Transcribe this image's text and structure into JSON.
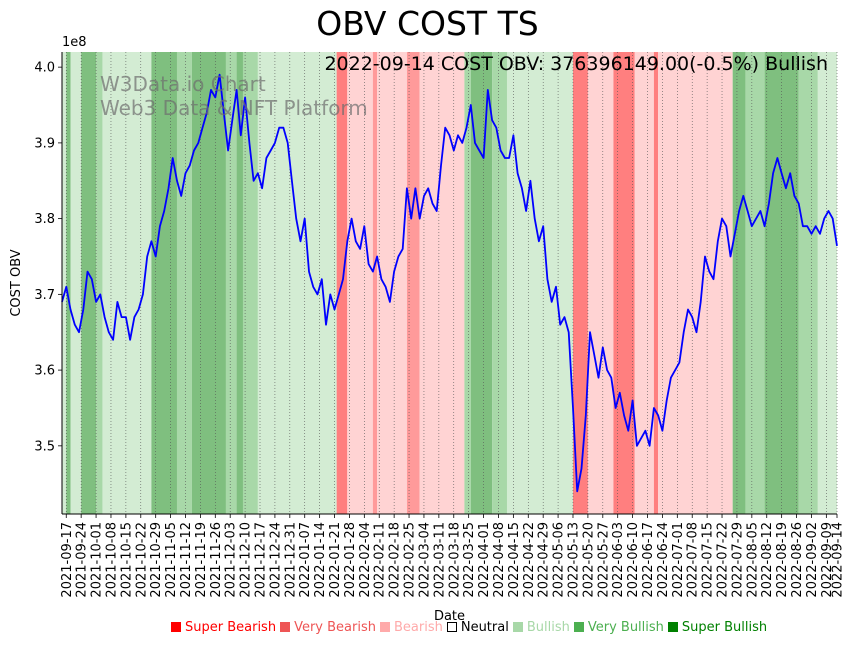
{
  "chart_data": {
    "type": "line",
    "title": "OBV COST TS",
    "annotation": "2022-09-14 COST OBV: 376396149.00(-0.5%) Bullish",
    "watermark_lines": [
      "W3Data.io Chart",
      "Web3 Data & NFT Platform"
    ],
    "xlabel": "Date",
    "ylabel": "COST OBV",
    "y_offset_label": "1e8",
    "ylim": [
      3.41,
      4.02
    ],
    "y_ticks": [
      "3.5",
      "3.6",
      "3.7",
      "3.8",
      "3.9",
      "4.0"
    ],
    "y_tick_values": [
      3.5,
      3.6,
      3.7,
      3.8,
      3.9,
      4.0
    ],
    "x_range": [
      "2021-09-15",
      "2022-09-14"
    ],
    "x_ticks": [
      "2021-09-17",
      "2021-09-24",
      "2021-10-01",
      "2021-10-08",
      "2021-10-15",
      "2021-10-22",
      "2021-10-29",
      "2021-11-05",
      "2021-11-12",
      "2021-11-19",
      "2021-11-26",
      "2021-12-03",
      "2021-12-10",
      "2021-12-17",
      "2021-12-24",
      "2021-12-31",
      "2022-01-07",
      "2022-01-14",
      "2022-01-21",
      "2022-01-28",
      "2022-02-04",
      "2022-02-11",
      "2022-02-18",
      "2022-02-25",
      "2022-03-04",
      "2022-03-11",
      "2022-03-18",
      "2022-03-25",
      "2022-04-01",
      "2022-04-08",
      "2022-04-15",
      "2022-04-22",
      "2022-04-29",
      "2022-05-06",
      "2022-05-13",
      "2022-05-20",
      "2022-05-27",
      "2022-06-03",
      "2022-06-10",
      "2022-06-17",
      "2022-06-24",
      "2022-07-01",
      "2022-07-08",
      "2022-07-15",
      "2022-07-22",
      "2022-07-29",
      "2022-08-05",
      "2022-08-12",
      "2022-08-19",
      "2022-08-26",
      "2022-09-02",
      "2022-09-09",
      "2022-09-14"
    ],
    "grid": "vertical dotted",
    "series": [
      {
        "color": "#0000ff",
        "points": [
          [
            "2021-09-15",
            3.69
          ],
          [
            "2021-09-17",
            3.71
          ],
          [
            "2021-09-19",
            3.68
          ],
          [
            "2021-09-21",
            3.66
          ],
          [
            "2021-09-23",
            3.65
          ],
          [
            "2021-09-25",
            3.68
          ],
          [
            "2021-09-27",
            3.73
          ],
          [
            "2021-09-29",
            3.72
          ],
          [
            "2021-10-01",
            3.69
          ],
          [
            "2021-10-03",
            3.7
          ],
          [
            "2021-10-05",
            3.67
          ],
          [
            "2021-10-07",
            3.65
          ],
          [
            "2021-10-09",
            3.64
          ],
          [
            "2021-10-11",
            3.69
          ],
          [
            "2021-10-13",
            3.67
          ],
          [
            "2021-10-15",
            3.67
          ],
          [
            "2021-10-17",
            3.64
          ],
          [
            "2021-10-19",
            3.67
          ],
          [
            "2021-10-21",
            3.68
          ],
          [
            "2021-10-23",
            3.7
          ],
          [
            "2021-10-25",
            3.75
          ],
          [
            "2021-10-27",
            3.77
          ],
          [
            "2021-10-29",
            3.75
          ],
          [
            "2021-10-31",
            3.79
          ],
          [
            "2021-11-02",
            3.81
          ],
          [
            "2021-11-04",
            3.84
          ],
          [
            "2021-11-06",
            3.88
          ],
          [
            "2021-11-08",
            3.85
          ],
          [
            "2021-11-10",
            3.83
          ],
          [
            "2021-11-12",
            3.86
          ],
          [
            "2021-11-14",
            3.87
          ],
          [
            "2021-11-16",
            3.89
          ],
          [
            "2021-11-18",
            3.9
          ],
          [
            "2021-11-20",
            3.92
          ],
          [
            "2021-11-22",
            3.94
          ],
          [
            "2021-11-24",
            3.97
          ],
          [
            "2021-11-26",
            3.96
          ],
          [
            "2021-11-28",
            3.99
          ],
          [
            "2021-11-30",
            3.94
          ],
          [
            "2021-12-02",
            3.89
          ],
          [
            "2021-12-04",
            3.93
          ],
          [
            "2021-12-06",
            3.97
          ],
          [
            "2021-12-08",
            3.91
          ],
          [
            "2021-12-10",
            3.96
          ],
          [
            "2021-12-12",
            3.9
          ],
          [
            "2021-12-14",
            3.85
          ],
          [
            "2021-12-16",
            3.86
          ],
          [
            "2021-12-18",
            3.84
          ],
          [
            "2021-12-20",
            3.88
          ],
          [
            "2021-12-22",
            3.89
          ],
          [
            "2021-12-24",
            3.9
          ],
          [
            "2021-12-26",
            3.92
          ],
          [
            "2021-12-28",
            3.92
          ],
          [
            "2021-12-30",
            3.9
          ],
          [
            "2022-01-01",
            3.85
          ],
          [
            "2022-01-03",
            3.8
          ],
          [
            "2022-01-05",
            3.77
          ],
          [
            "2022-01-07",
            3.8
          ],
          [
            "2022-01-09",
            3.73
          ],
          [
            "2022-01-11",
            3.71
          ],
          [
            "2022-01-13",
            3.7
          ],
          [
            "2022-01-15",
            3.72
          ],
          [
            "2022-01-17",
            3.66
          ],
          [
            "2022-01-19",
            3.7
          ],
          [
            "2022-01-21",
            3.68
          ],
          [
            "2022-01-23",
            3.7
          ],
          [
            "2022-01-25",
            3.72
          ],
          [
            "2022-01-27",
            3.77
          ],
          [
            "2022-01-29",
            3.8
          ],
          [
            "2022-01-31",
            3.77
          ],
          [
            "2022-02-02",
            3.76
          ],
          [
            "2022-02-04",
            3.79
          ],
          [
            "2022-02-06",
            3.74
          ],
          [
            "2022-02-08",
            3.73
          ],
          [
            "2022-02-10",
            3.75
          ],
          [
            "2022-02-12",
            3.72
          ],
          [
            "2022-02-14",
            3.71
          ],
          [
            "2022-02-16",
            3.69
          ],
          [
            "2022-02-18",
            3.73
          ],
          [
            "2022-02-20",
            3.75
          ],
          [
            "2022-02-22",
            3.76
          ],
          [
            "2022-02-24",
            3.84
          ],
          [
            "2022-02-26",
            3.8
          ],
          [
            "2022-02-28",
            3.84
          ],
          [
            "2022-03-02",
            3.8
          ],
          [
            "2022-03-04",
            3.83
          ],
          [
            "2022-03-06",
            3.84
          ],
          [
            "2022-03-08",
            3.82
          ],
          [
            "2022-03-10",
            3.81
          ],
          [
            "2022-03-12",
            3.87
          ],
          [
            "2022-03-14",
            3.92
          ],
          [
            "2022-03-16",
            3.91
          ],
          [
            "2022-03-18",
            3.89
          ],
          [
            "2022-03-20",
            3.91
          ],
          [
            "2022-03-22",
            3.9
          ],
          [
            "2022-03-24",
            3.92
          ],
          [
            "2022-03-26",
            3.95
          ],
          [
            "2022-03-28",
            3.9
          ],
          [
            "2022-03-30",
            3.89
          ],
          [
            "2022-04-01",
            3.88
          ],
          [
            "2022-04-03",
            3.97
          ],
          [
            "2022-04-05",
            3.93
          ],
          [
            "2022-04-07",
            3.92
          ],
          [
            "2022-04-09",
            3.89
          ],
          [
            "2022-04-11",
            3.88
          ],
          [
            "2022-04-13",
            3.88
          ],
          [
            "2022-04-15",
            3.91
          ],
          [
            "2022-04-17",
            3.86
          ],
          [
            "2022-04-19",
            3.84
          ],
          [
            "2022-04-21",
            3.81
          ],
          [
            "2022-04-23",
            3.85
          ],
          [
            "2022-04-25",
            3.8
          ],
          [
            "2022-04-27",
            3.77
          ],
          [
            "2022-04-29",
            3.79
          ],
          [
            "2022-05-01",
            3.72
          ],
          [
            "2022-05-03",
            3.69
          ],
          [
            "2022-05-05",
            3.71
          ],
          [
            "2022-05-07",
            3.66
          ],
          [
            "2022-05-09",
            3.67
          ],
          [
            "2022-05-11",
            3.65
          ],
          [
            "2022-05-13",
            3.55
          ],
          [
            "2022-05-15",
            3.44
          ],
          [
            "2022-05-17",
            3.47
          ],
          [
            "2022-05-19",
            3.54
          ],
          [
            "2022-05-21",
            3.65
          ],
          [
            "2022-05-23",
            3.62
          ],
          [
            "2022-05-25",
            3.59
          ],
          [
            "2022-05-27",
            3.63
          ],
          [
            "2022-05-29",
            3.6
          ],
          [
            "2022-05-31",
            3.59
          ],
          [
            "2022-06-02",
            3.55
          ],
          [
            "2022-06-04",
            3.57
          ],
          [
            "2022-06-06",
            3.54
          ],
          [
            "2022-06-08",
            3.52
          ],
          [
            "2022-06-10",
            3.56
          ],
          [
            "2022-06-12",
            3.5
          ],
          [
            "2022-06-14",
            3.51
          ],
          [
            "2022-06-16",
            3.52
          ],
          [
            "2022-06-18",
            3.5
          ],
          [
            "2022-06-20",
            3.55
          ],
          [
            "2022-06-22",
            3.54
          ],
          [
            "2022-06-24",
            3.52
          ],
          [
            "2022-06-26",
            3.56
          ],
          [
            "2022-06-28",
            3.59
          ],
          [
            "2022-06-30",
            3.6
          ],
          [
            "2022-07-02",
            3.61
          ],
          [
            "2022-07-04",
            3.65
          ],
          [
            "2022-07-06",
            3.68
          ],
          [
            "2022-07-08",
            3.67
          ],
          [
            "2022-07-10",
            3.65
          ],
          [
            "2022-07-12",
            3.69
          ],
          [
            "2022-07-14",
            3.75
          ],
          [
            "2022-07-16",
            3.73
          ],
          [
            "2022-07-18",
            3.72
          ],
          [
            "2022-07-20",
            3.77
          ],
          [
            "2022-07-22",
            3.8
          ],
          [
            "2022-07-24",
            3.79
          ],
          [
            "2022-07-26",
            3.75
          ],
          [
            "2022-07-28",
            3.78
          ],
          [
            "2022-07-30",
            3.81
          ],
          [
            "2022-08-01",
            3.83
          ],
          [
            "2022-08-03",
            3.81
          ],
          [
            "2022-08-05",
            3.79
          ],
          [
            "2022-08-07",
            3.8
          ],
          [
            "2022-08-09",
            3.81
          ],
          [
            "2022-08-11",
            3.79
          ],
          [
            "2022-08-13",
            3.82
          ],
          [
            "2022-08-15",
            3.86
          ],
          [
            "2022-08-17",
            3.88
          ],
          [
            "2022-08-19",
            3.86
          ],
          [
            "2022-08-21",
            3.84
          ],
          [
            "2022-08-23",
            3.86
          ],
          [
            "2022-08-25",
            3.83
          ],
          [
            "2022-08-27",
            3.82
          ],
          [
            "2022-08-29",
            3.79
          ],
          [
            "2022-08-31",
            3.79
          ],
          [
            "2022-09-02",
            3.78
          ],
          [
            "2022-09-04",
            3.79
          ],
          [
            "2022-09-06",
            3.78
          ],
          [
            "2022-09-08",
            3.8
          ],
          [
            "2022-09-10",
            3.81
          ],
          [
            "2022-09-12",
            3.8
          ],
          [
            "2022-09-14",
            3.764
          ]
        ]
      }
    ],
    "sentiment_colors": {
      "super_bearish": "#ff7f7f",
      "very_bearish": "#ff9a9a",
      "bearish": "#ffd3d3",
      "neutral": "#ffffff",
      "bullish": "#d3ecd3",
      "very_bullish": "#a8d8a8",
      "super_bullish": "#7fbf7f"
    },
    "background_regions": [
      {
        "from": "2021-09-15",
        "to": "2021-09-17",
        "level": "bullish"
      },
      {
        "from": "2021-09-17",
        "to": "2021-09-19",
        "level": "super_bullish"
      },
      {
        "from": "2021-09-19",
        "to": "2021-09-24",
        "level": "bullish"
      },
      {
        "from": "2021-09-24",
        "to": "2021-10-01",
        "level": "super_bullish"
      },
      {
        "from": "2021-10-01",
        "to": "2021-10-04",
        "level": "very_bullish"
      },
      {
        "from": "2021-10-04",
        "to": "2021-10-27",
        "level": "bullish"
      },
      {
        "from": "2021-10-27",
        "to": "2021-11-08",
        "level": "super_bullish"
      },
      {
        "from": "2021-11-08",
        "to": "2021-11-15",
        "level": "very_bullish"
      },
      {
        "from": "2021-11-15",
        "to": "2021-12-01",
        "level": "super_bullish"
      },
      {
        "from": "2021-12-01",
        "to": "2021-12-06",
        "level": "very_bullish"
      },
      {
        "from": "2021-12-06",
        "to": "2021-12-09",
        "level": "super_bullish"
      },
      {
        "from": "2021-12-09",
        "to": "2021-12-16",
        "level": "very_bullish"
      },
      {
        "from": "2021-12-16",
        "to": "2022-01-22",
        "level": "bullish"
      },
      {
        "from": "2022-01-22",
        "to": "2022-01-27",
        "level": "super_bearish"
      },
      {
        "from": "2022-01-27",
        "to": "2022-02-08",
        "level": "bearish"
      },
      {
        "from": "2022-02-08",
        "to": "2022-02-10",
        "level": "very_bearish"
      },
      {
        "from": "2022-02-10",
        "to": "2022-02-24",
        "level": "bearish"
      },
      {
        "from": "2022-02-24",
        "to": "2022-03-02",
        "level": "very_bearish"
      },
      {
        "from": "2022-03-02",
        "to": "2022-03-23",
        "level": "bearish"
      },
      {
        "from": "2022-03-23",
        "to": "2022-03-26",
        "level": "very_bullish"
      },
      {
        "from": "2022-03-26",
        "to": "2022-04-05",
        "level": "super_bullish"
      },
      {
        "from": "2022-04-05",
        "to": "2022-04-12",
        "level": "very_bullish"
      },
      {
        "from": "2022-04-12",
        "to": "2022-05-13",
        "level": "bullish"
      },
      {
        "from": "2022-05-13",
        "to": "2022-05-20",
        "level": "super_bearish"
      },
      {
        "from": "2022-05-20",
        "to": "2022-06-01",
        "level": "bearish"
      },
      {
        "from": "2022-06-01",
        "to": "2022-06-11",
        "level": "super_bearish"
      },
      {
        "from": "2022-06-11",
        "to": "2022-06-20",
        "level": "bearish"
      },
      {
        "from": "2022-06-20",
        "to": "2022-06-22",
        "level": "super_bearish"
      },
      {
        "from": "2022-06-22",
        "to": "2022-07-27",
        "level": "bearish"
      },
      {
        "from": "2022-07-27",
        "to": "2022-08-02",
        "level": "super_bullish"
      },
      {
        "from": "2022-08-02",
        "to": "2022-08-11",
        "level": "very_bullish"
      },
      {
        "from": "2022-08-11",
        "to": "2022-08-27",
        "level": "super_bullish"
      },
      {
        "from": "2022-08-27",
        "to": "2022-09-05",
        "level": "very_bullish"
      },
      {
        "from": "2022-09-05",
        "to": "2022-09-14",
        "level": "bullish"
      }
    ],
    "legend": [
      {
        "label": "Super Bearish",
        "text_color": "#ff0000",
        "swatch": "#ff0000"
      },
      {
        "label": "Very Bearish",
        "text_color": "#ee5555",
        "swatch": "#ee5555"
      },
      {
        "label": "Bearish",
        "text_color": "#ffaaaa",
        "swatch": "#ffaaaa"
      },
      {
        "label": "Neutral",
        "text_color": "#000000",
        "swatch": "#ffffff"
      },
      {
        "label": "Bullish",
        "text_color": "#a8d8a8",
        "swatch": "#a8d8a8"
      },
      {
        "label": "Very Bullish",
        "text_color": "#4caf50",
        "swatch": "#4caf50"
      },
      {
        "label": "Super Bullish",
        "text_color": "#008000",
        "swatch": "#008000"
      }
    ]
  }
}
